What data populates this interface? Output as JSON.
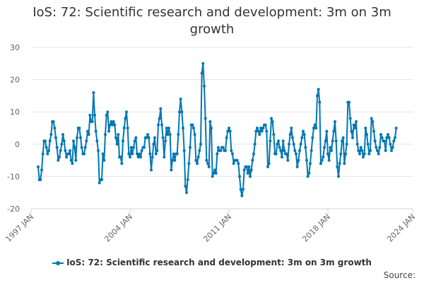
{
  "chart_data": {
    "type": "line",
    "title": "IoS: 72: Scientific research and development: 3m on 3m growth",
    "title_lines": [
      "IoS: 72: Scientific research and development: 3m on 3m",
      "growth"
    ],
    "xlabel": "",
    "ylabel": "",
    "ylim": [
      -20,
      30
    ],
    "yticks": [
      -20,
      -10,
      0,
      10,
      20,
      30
    ],
    "xlim": [
      1997.0,
      2024.0
    ],
    "xticks": [
      {
        "value": 1997.0,
        "label": "1997 JAN"
      },
      {
        "value": 2004.0,
        "label": "2004 JAN"
      },
      {
        "value": 2011.0,
        "label": "2011 JAN"
      },
      {
        "value": 2018.0,
        "label": "2018 JAN"
      },
      {
        "value": 2024.0,
        "label": "2024 JAN"
      }
    ],
    "grid": true,
    "legend_position": "bottom",
    "color": "#0077b4",
    "series": [
      {
        "name": "IoS: 72: Scientific research and development: 3m on 3m growth",
        "x_start": 1997.5,
        "x_step": 0.08333,
        "values": [
          -7,
          -11,
          -11,
          -8,
          -3,
          1,
          1,
          -1,
          -3,
          -2,
          1,
          3,
          7,
          7,
          5,
          2,
          -1,
          -5,
          -4,
          -2,
          0,
          3,
          1,
          -2,
          -4,
          -3,
          -3,
          -2,
          -5,
          -6,
          1,
          -1,
          -5,
          2,
          5,
          5,
          2,
          -1,
          -3,
          -3,
          -1,
          1,
          4,
          3,
          9,
          7,
          7,
          16,
          9,
          4,
          1,
          -2,
          -12,
          -11,
          -11,
          -3,
          -5,
          3,
          9,
          10,
          4,
          6,
          7,
          6,
          7,
          6,
          2,
          0,
          3,
          -4,
          -4,
          -6,
          1,
          5,
          8,
          10,
          5,
          -3,
          -4,
          -1,
          -3,
          -1,
          1,
          2,
          -3,
          -4,
          -3,
          -4,
          -2,
          -1,
          -1,
          2,
          2,
          3,
          2,
          -3,
          -8,
          -4,
          0,
          2,
          -3,
          -2,
          6,
          8,
          11,
          6,
          2,
          -4,
          1,
          5,
          3,
          5,
          3,
          -8,
          -5,
          -3,
          -5,
          -3,
          -3,
          3,
          10,
          14,
          10,
          5,
          -2,
          -13,
          -15,
          -11,
          -6,
          -1,
          6,
          6,
          5,
          3,
          -5,
          -6,
          -4,
          -2,
          0,
          22,
          25,
          18,
          8,
          -5,
          -6,
          -7,
          7,
          5,
          -10,
          -9,
          -8,
          -9,
          -3,
          -1,
          -2,
          -2,
          -1,
          -1,
          -2,
          -2,
          2,
          4,
          5,
          4,
          -2,
          -3,
          -6,
          -5,
          -5,
          -5,
          -6,
          -10,
          -14,
          -16,
          -14,
          -8,
          -7,
          -7,
          -9,
          -7,
          -10,
          -8,
          -5,
          -3,
          0,
          4,
          5,
          4,
          3,
          5,
          4,
          5,
          6,
          6,
          4,
          -7,
          -6,
          1,
          8,
          7,
          3,
          -3,
          -3,
          0,
          1,
          -1,
          -2,
          -4,
          1,
          -2,
          -3,
          -3,
          -5,
          0,
          3,
          5,
          2,
          0,
          -2,
          -3,
          -7,
          -5,
          -2,
          0,
          2,
          4,
          3,
          -1,
          -5,
          -10,
          -9,
          -6,
          -2,
          2,
          5,
          6,
          5,
          15,
          17,
          13,
          -6,
          -5,
          -4,
          -1,
          1,
          4,
          -3,
          -5,
          -1,
          -2,
          1,
          4,
          7,
          1,
          -7,
          -10,
          -6,
          -3,
          1,
          2,
          -6,
          -3,
          0,
          13,
          13,
          8,
          4,
          2,
          6,
          5,
          7,
          0,
          -2,
          -3,
          -1,
          -2,
          -4,
          -3,
          5,
          3,
          0,
          -3,
          -2,
          8,
          7,
          4,
          1,
          -1,
          -2,
          -3,
          -1,
          3,
          2,
          1,
          1,
          -2,
          2,
          3,
          2,
          0,
          -2,
          -1,
          1,
          2,
          5
        ]
      }
    ]
  },
  "legend": {
    "label": "IoS: 72: Scientific research and development: 3m on 3m growth"
  },
  "footer": {
    "source_label": "Source:"
  }
}
